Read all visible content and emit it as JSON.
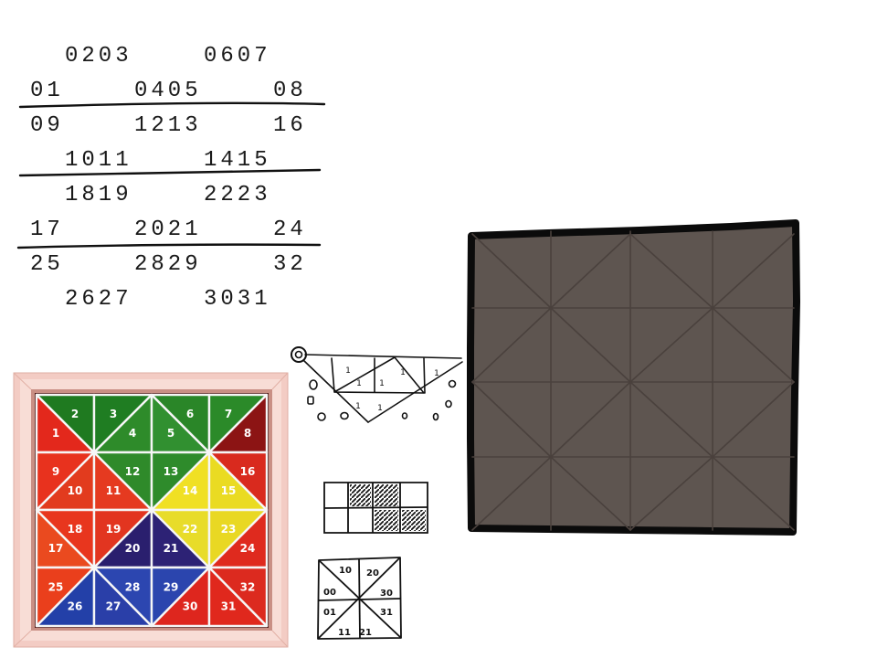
{
  "code_table": {
    "rows": [
      [
        "0203",
        "0607"
      ],
      [
        "01",
        "0405",
        "08"
      ],
      [
        "09",
        "1213",
        "16"
      ],
      [
        "1011",
        "1415"
      ],
      [
        "1819",
        "2223"
      ],
      [
        "17",
        "2021",
        "24"
      ],
      [
        "25",
        "2829",
        "32"
      ],
      [
        "2627",
        "3031"
      ]
    ]
  },
  "puzzle_photo": {
    "frame_color": "#f3ccc4",
    "rim_color": "#f8ddd6",
    "line_color": "#f6f6f6",
    "label_color": "#ffffff",
    "pieces": [
      {
        "label": "1",
        "color": "#e3281c"
      },
      {
        "label": "2",
        "color": "#1f7a20"
      },
      {
        "label": "3",
        "color": "#1f7d22"
      },
      {
        "label": "4",
        "color": "#2e8b2a"
      },
      {
        "label": "5",
        "color": "#319030"
      },
      {
        "label": "6",
        "color": "#2a8628"
      },
      {
        "label": "7",
        "color": "#2b8a29"
      },
      {
        "label": "8",
        "color": "#8c1414"
      },
      {
        "label": "9",
        "color": "#e8321e"
      },
      {
        "label": "10",
        "color": "#e23b1e"
      },
      {
        "label": "11",
        "color": "#e53a20"
      },
      {
        "label": "12",
        "color": "#2f8a2a"
      },
      {
        "label": "13",
        "color": "#2e8b2b"
      },
      {
        "label": "14",
        "color": "#f0e024"
      },
      {
        "label": "15",
        "color": "#eadb22"
      },
      {
        "label": "16",
        "color": "#d92a1e"
      },
      {
        "label": "17",
        "color": "#ea4a1f"
      },
      {
        "label": "18",
        "color": "#e8361e"
      },
      {
        "label": "19",
        "color": "#e23520"
      },
      {
        "label": "20",
        "color": "#2a1f6e"
      },
      {
        "label": "21",
        "color": "#2d2275"
      },
      {
        "label": "22",
        "color": "#e8dc2a"
      },
      {
        "label": "23",
        "color": "#e9d823"
      },
      {
        "label": "24",
        "color": "#df2a1e"
      },
      {
        "label": "25",
        "color": "#ea3f1c"
      },
      {
        "label": "26",
        "color": "#2340a8"
      },
      {
        "label": "27",
        "color": "#2a3fa8"
      },
      {
        "label": "28",
        "color": "#2c46b0"
      },
      {
        "label": "29",
        "color": "#2b45ae"
      },
      {
        "label": "30",
        "color": "#de261e"
      },
      {
        "label": "31",
        "color": "#e0281d"
      },
      {
        "label": "32",
        "color": "#dc2a1f"
      }
    ]
  },
  "sketch_triangle": {
    "marks": [
      "1",
      "1",
      "1",
      "1",
      "1",
      "1",
      "1"
    ]
  },
  "sketch_grid": {
    "hatched_cells": [
      [
        0,
        1
      ],
      [
        0,
        2
      ],
      [
        1,
        2
      ],
      [
        1,
        3
      ]
    ]
  },
  "sketch_square": {
    "labels": [
      "10",
      "20",
      "00",
      "30",
      "01",
      "31",
      "11",
      "21"
    ]
  },
  "board": {
    "fill": "#5e5550",
    "border_color": "#0b0b0b",
    "line_color": "#4a413d"
  }
}
